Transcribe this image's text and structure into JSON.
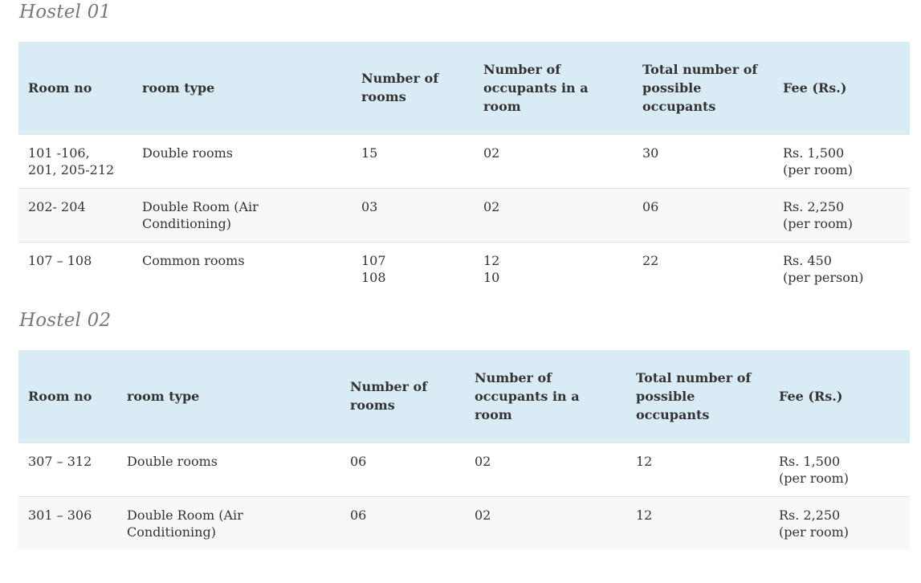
{
  "hostels": [
    {
      "title": "Hostel 01",
      "headers": [
        "Room no",
        "room type",
        "Number of\nrooms",
        "Number of\noccupants in a room",
        "Total number of\npossible\noccupants",
        "Fee (Rs.)"
      ],
      "rows": [
        [
          "101 -106,\n201, 205-212",
          "Double rooms",
          "15",
          "02",
          "30",
          "Rs. 1,500\n(per room)"
        ],
        [
          "202- 204",
          "Double Room (Air\nConditioning)",
          "03",
          "02",
          "06",
          "Rs. 2,250\n(per room)"
        ],
        [
          "107 – 108",
          "Common rooms",
          "107\n108",
          "12\n10",
          "22",
          "Rs. 450\n(per person)"
        ]
      ]
    },
    {
      "title": "Hostel 02",
      "headers": [
        "Room no",
        "room type",
        "Number of\nrooms",
        "Number of\noccupants in a room",
        "Total number of\npossible\noccupants",
        "Fee (Rs.)"
      ],
      "rows": [
        [
          "307 – 312",
          "Double rooms",
          "06",
          "02",
          "12",
          "Rs. 1,500\n(per room)"
        ],
        [
          "301 – 306",
          "Double Room (Air\nConditioning)",
          "06",
          "02",
          "12",
          "Rs. 2,250\n(per room)"
        ]
      ]
    }
  ]
}
